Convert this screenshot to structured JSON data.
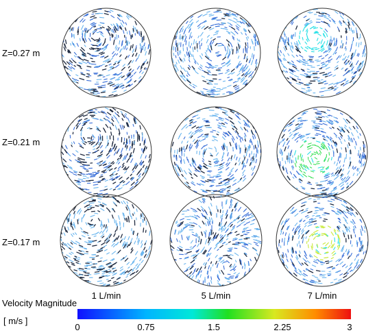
{
  "rows": [
    {
      "label": "Z=0.27 m"
    },
    {
      "label": "Z=0.21 m"
    },
    {
      "label": "Z=0.17 m"
    }
  ],
  "columns": [
    {
      "label": "1 L/min"
    },
    {
      "label": "5 L/min"
    },
    {
      "label": "7 L/min"
    }
  ],
  "colorbar": {
    "title": "Velocity Magnitude",
    "unit": "[ m/s ]",
    "min": 0,
    "max": 3,
    "ticks": [
      "0",
      "0.75",
      "1.5",
      "2.25",
      "3"
    ],
    "colors": [
      "#1010ff",
      "#00b4ff",
      "#00e8d8",
      "#20e020",
      "#d8e820",
      "#ff8c00",
      "#ee1010"
    ]
  },
  "palette": {
    "dark": "#1f2a40",
    "blue": "#3a6fd8",
    "light_blue": "#68b4ee",
    "cyan": "#29e0e6",
    "green": "#3ee05a",
    "yellow_green": "#c9ea3a"
  }
}
